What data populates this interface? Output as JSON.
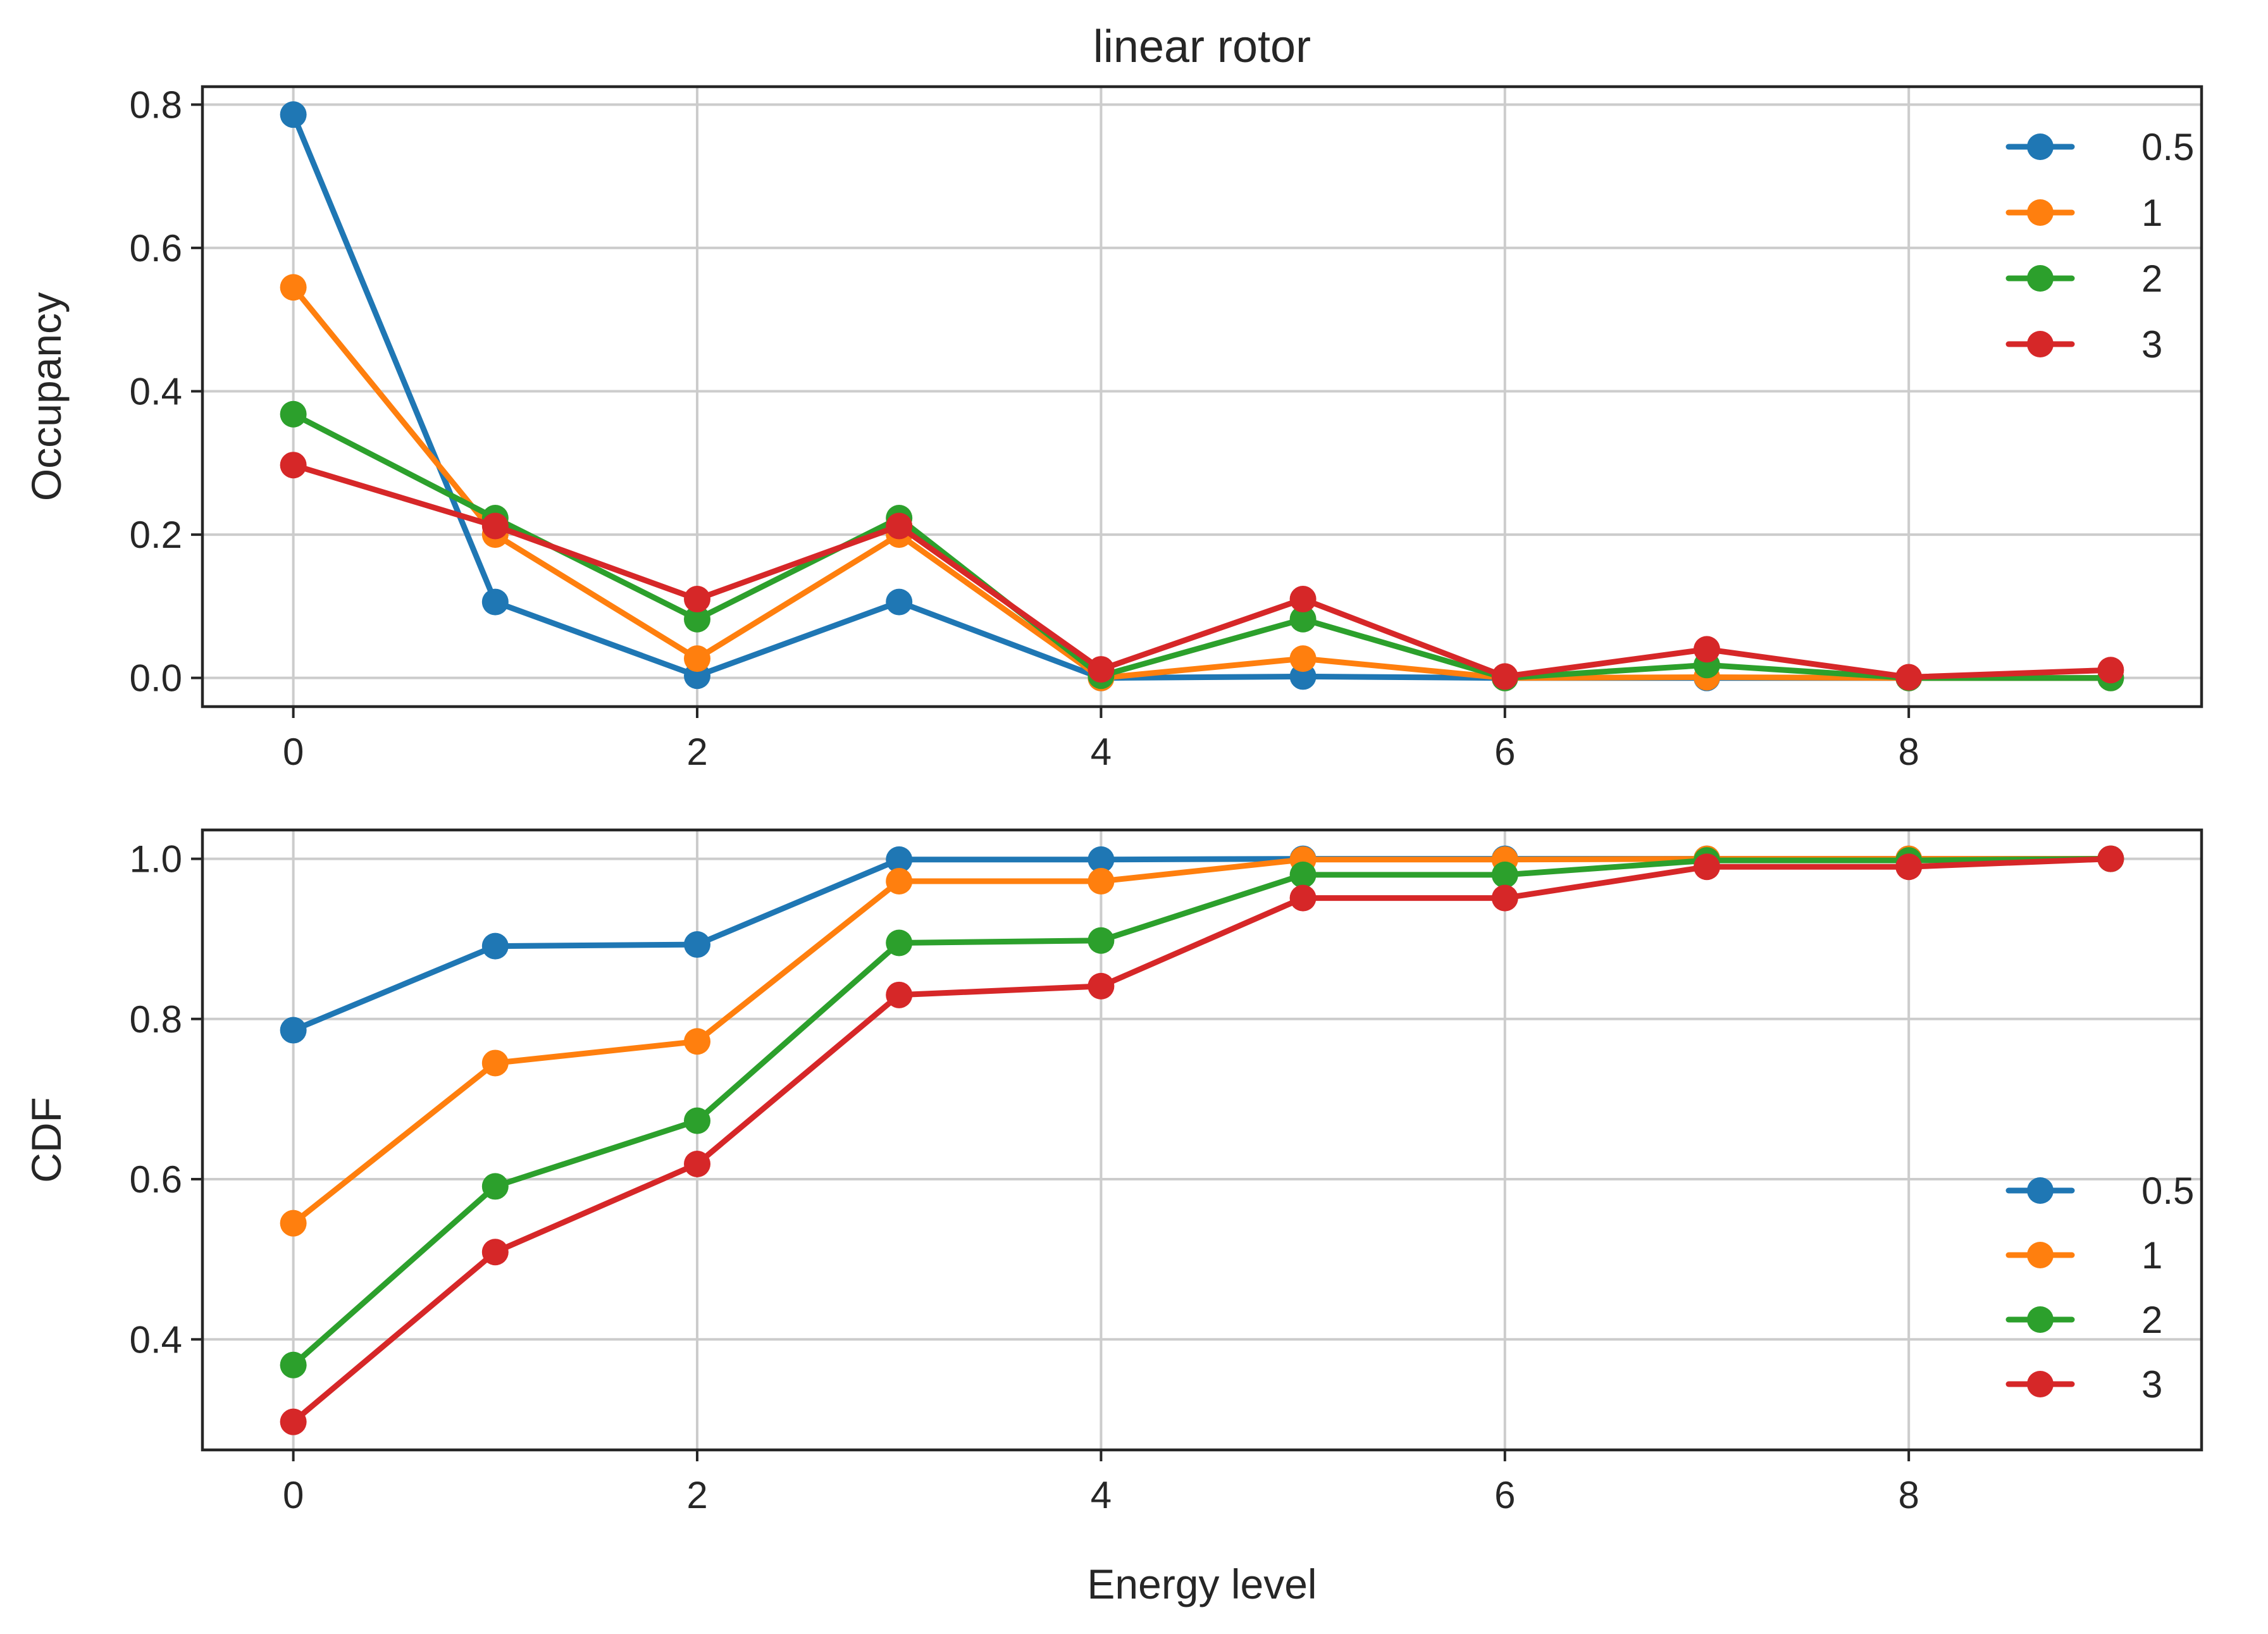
{
  "chart_data": [
    {
      "type": "line",
      "title": "linear rotor",
      "xlabel": "",
      "ylabel": "Occupancy",
      "xlim": [
        -0.45,
        9.45
      ],
      "ylim": [
        -0.04,
        0.825
      ],
      "xticks": [
        "0",
        "2",
        "4",
        "6",
        "8"
      ],
      "yticks": [
        "0.0",
        "0.2",
        "0.4",
        "0.6",
        "0.8"
      ],
      "grid": true,
      "legend_position": "top-right",
      "x": [
        0,
        1,
        2,
        3,
        4,
        5,
        6,
        7,
        8,
        9
      ],
      "series": [
        {
          "name": "0.5",
          "color": "#1f77b4",
          "values": [
            0.786,
            0.106,
            0.003,
            0.106,
            0.0,
            0.002,
            0.0,
            0.0,
            0.0,
            0.0
          ]
        },
        {
          "name": "1",
          "color": "#ff7f0e",
          "values": [
            0.545,
            0.2,
            0.027,
            0.2,
            0.0,
            0.027,
            0.0,
            0.001,
            0.0,
            0.0
          ]
        },
        {
          "name": "2",
          "color": "#2ca02c",
          "values": [
            0.368,
            0.223,
            0.082,
            0.223,
            0.003,
            0.082,
            0.0,
            0.018,
            0.0,
            0.0
          ]
        },
        {
          "name": "3",
          "color": "#d62728",
          "values": [
            0.297,
            0.212,
            0.11,
            0.212,
            0.012,
            0.11,
            0.002,
            0.04,
            0.001,
            0.011
          ]
        }
      ]
    },
    {
      "type": "line",
      "title": "",
      "xlabel": "Energy level",
      "ylabel": "CDF",
      "xlim": [
        -0.45,
        9.45
      ],
      "ylim": [
        0.262,
        1.036
      ],
      "xticks": [
        "0",
        "2",
        "4",
        "6",
        "8"
      ],
      "yticks": [
        "0.4",
        "0.6",
        "0.8",
        "1.0"
      ],
      "grid": true,
      "legend_position": "lower-right",
      "x": [
        0,
        1,
        2,
        3,
        4,
        5,
        6,
        7,
        8,
        9
      ],
      "series": [
        {
          "name": "0.5",
          "color": "#1f77b4",
          "values": [
            0.786,
            0.891,
            0.893,
            0.999,
            0.999,
            1.0,
            1.0,
            1.0,
            1.0,
            1.0
          ]
        },
        {
          "name": "1",
          "color": "#ff7f0e",
          "values": [
            0.545,
            0.745,
            0.772,
            0.972,
            0.972,
            0.999,
            0.999,
            1.0,
            1.0,
            1.0
          ]
        },
        {
          "name": "2",
          "color": "#2ca02c",
          "values": [
            0.368,
            0.591,
            0.673,
            0.895,
            0.898,
            0.98,
            0.98,
            0.998,
            0.998,
            1.0
          ]
        },
        {
          "name": "3",
          "color": "#d62728",
          "values": [
            0.297,
            0.509,
            0.619,
            0.83,
            0.841,
            0.951,
            0.951,
            0.99,
            0.99,
            1.0
          ]
        }
      ]
    }
  ]
}
